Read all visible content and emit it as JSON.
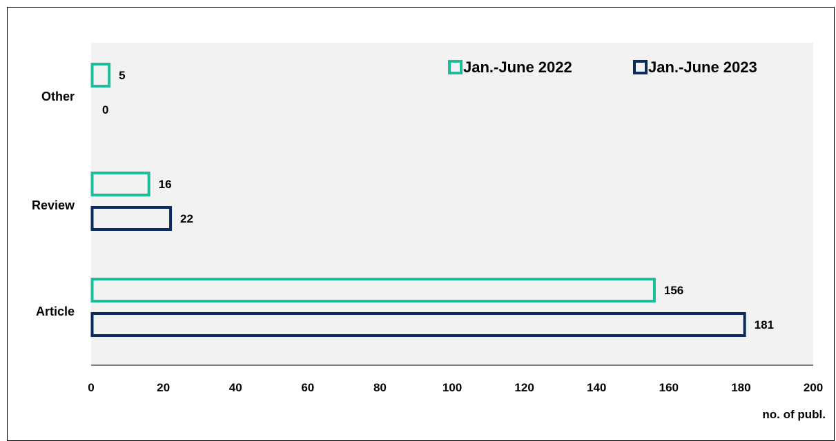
{
  "chart_data": {
    "type": "bar",
    "orientation": "horizontal",
    "categories": [
      "Other",
      "Review",
      "Article"
    ],
    "series": [
      {
        "name": "Jan.-June 2022",
        "color": "#1dbd9a",
        "values": [
          5,
          16,
          156
        ]
      },
      {
        "name": "Jan.-June 2023",
        "color": "#0b2a5e",
        "values": [
          0,
          22,
          181
        ]
      }
    ],
    "xlabel": "no. of publ.",
    "xlim": [
      0,
      200
    ],
    "xticks": [
      0,
      20,
      40,
      60,
      80,
      100,
      120,
      140,
      160,
      180,
      200
    ],
    "grid": false,
    "legend": "top-right",
    "plot_background": "#f2f2f2"
  }
}
